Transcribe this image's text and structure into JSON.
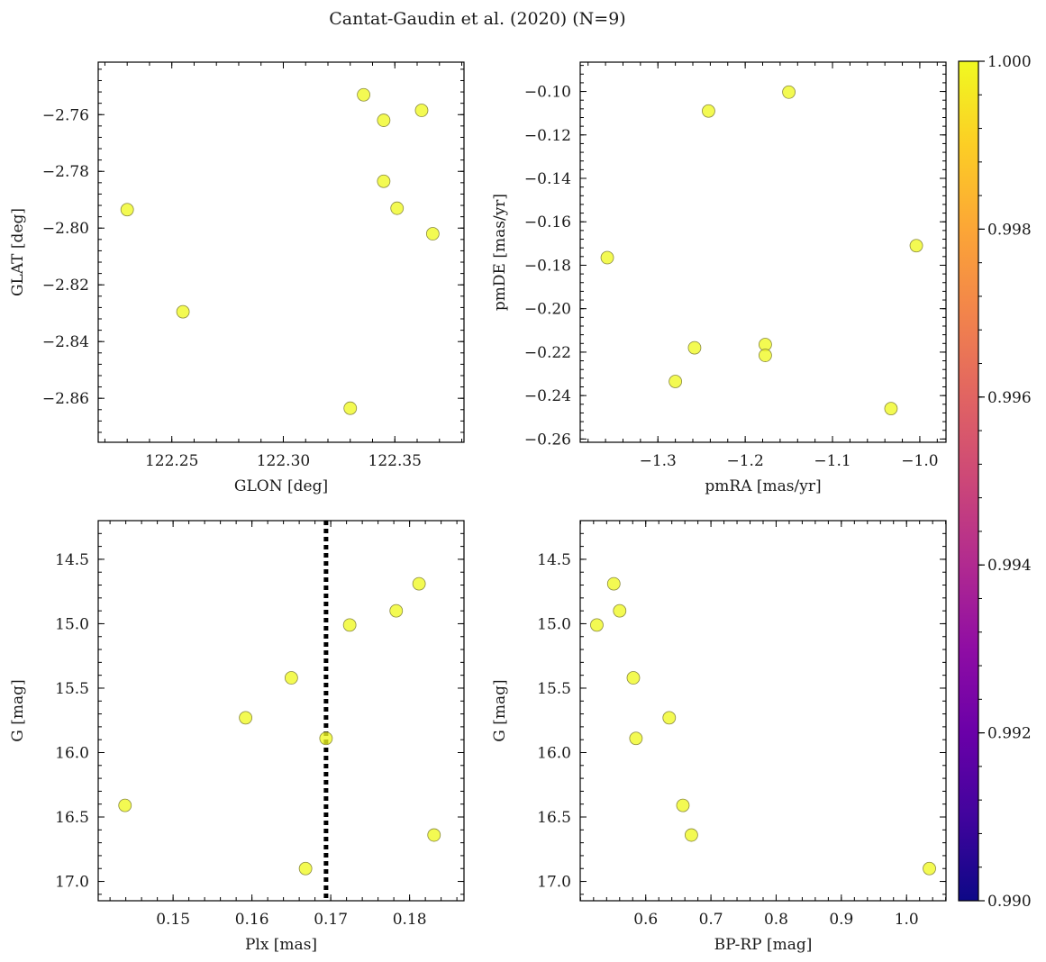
{
  "figure": {
    "title": "Cantat-Gaudin et al. (2020) (N=9)"
  },
  "colorbar": {
    "vmin": 0.99,
    "vmax": 1.0,
    "colormap": "plasma",
    "ticks": [
      0.99,
      0.992,
      0.994,
      0.996,
      0.998,
      1.0
    ],
    "tick_labels": [
      "0.990",
      "0.992",
      "0.994",
      "0.996",
      "0.998",
      "1.000"
    ]
  },
  "chart_data": [
    {
      "type": "scatter",
      "xlabel": "GLON [deg]",
      "ylabel": "GLAT [deg]",
      "xlim": [
        122.217,
        122.381
      ],
      "ylim": [
        -2.8755,
        -2.7415
      ],
      "inverted_y": false,
      "xticks": [
        122.25,
        122.3,
        122.35
      ],
      "xtick_labels": [
        "122.25",
        "122.30",
        "122.35"
      ],
      "xminor": 0.01,
      "yticks": [
        -2.76,
        -2.78,
        -2.8,
        -2.82,
        -2.84,
        -2.86
      ],
      "ytick_labels": [
        "−2.76",
        "−2.78",
        "−2.80",
        "−2.82",
        "−2.84",
        "−2.86"
      ],
      "yminor": 0.004,
      "marker_color": "#f0f921",
      "points": [
        {
          "x": 122.23,
          "y": -2.7935
        },
        {
          "x": 122.255,
          "y": -2.8295
        },
        {
          "x": 122.336,
          "y": -2.753
        },
        {
          "x": 122.345,
          "y": -2.762
        },
        {
          "x": 122.345,
          "y": -2.7835
        },
        {
          "x": 122.351,
          "y": -2.793
        },
        {
          "x": 122.362,
          "y": -2.7585
        },
        {
          "x": 122.367,
          "y": -2.802
        },
        {
          "x": 122.33,
          "y": -2.8635
        }
      ]
    },
    {
      "type": "scatter",
      "xlabel": "pmRA [mas/yr]",
      "ylabel": "pmDE [mas/yr]",
      "xlim": [
        -1.389,
        -0.97
      ],
      "ylim": [
        -0.2615,
        -0.0865
      ],
      "inverted_y": false,
      "xticks": [
        -1.3,
        -1.2,
        -1.1,
        -1.0
      ],
      "xtick_labels": [
        "−1.3",
        "−1.2",
        "−1.1",
        "−1.0"
      ],
      "xminor": 0.02,
      "yticks": [
        -0.1,
        -0.12,
        -0.14,
        -0.16,
        -0.18,
        -0.2,
        -0.22,
        -0.24,
        -0.26
      ],
      "ytick_labels": [
        "−0.10",
        "−0.12",
        "−0.14",
        "−0.16",
        "−0.18",
        "−0.20",
        "−0.22",
        "−0.24",
        "−0.26"
      ],
      "yminor": 0.004,
      "marker_color": "#f0f921",
      "points": [
        {
          "x": -1.358,
          "y": -0.1765
        },
        {
          "x": -1.28,
          "y": -0.2335
        },
        {
          "x": -1.258,
          "y": -0.218
        },
        {
          "x": -1.242,
          "y": -0.109
        },
        {
          "x": -1.177,
          "y": -0.2165
        },
        {
          "x": -1.177,
          "y": -0.2215
        },
        {
          "x": -1.15,
          "y": -0.1003
        },
        {
          "x": -1.033,
          "y": -0.246
        },
        {
          "x": -1.004,
          "y": -0.171
        }
      ]
    },
    {
      "type": "scatter",
      "xlabel": "Plx [mas]",
      "ylabel": "G [mag]",
      "xlim": [
        0.1405,
        0.1869
      ],
      "ylim": [
        17.15,
        14.2
      ],
      "inverted_y": true,
      "xticks": [
        0.15,
        0.16,
        0.17,
        0.18
      ],
      "xtick_labels": [
        "0.15",
        "0.16",
        "0.17",
        "0.18"
      ],
      "xminor": 0.002,
      "yticks": [
        14.5,
        15.0,
        15.5,
        16.0,
        16.5,
        17.0
      ],
      "ytick_labels": [
        "14.5",
        "15.0",
        "15.5",
        "16.0",
        "16.5",
        "17.0"
      ],
      "yminor": 0.1,
      "vline": 0.1694,
      "marker_color": "#f0f921",
      "points": [
        {
          "x": 0.1439,
          "y": 16.41
        },
        {
          "x": 0.1592,
          "y": 15.73
        },
        {
          "x": 0.165,
          "y": 15.42
        },
        {
          "x": 0.1668,
          "y": 16.9
        },
        {
          "x": 0.1694,
          "y": 15.89
        },
        {
          "x": 0.1724,
          "y": 15.01
        },
        {
          "x": 0.1783,
          "y": 14.9
        },
        {
          "x": 0.1812,
          "y": 14.69
        },
        {
          "x": 0.1831,
          "y": 16.64
        }
      ]
    },
    {
      "type": "scatter",
      "xlabel": "BP-RP [mag]",
      "ylabel": "G [mag]",
      "xlim": [
        0.4995,
        1.0605
      ],
      "ylim": [
        17.15,
        14.2
      ],
      "inverted_y": true,
      "xticks": [
        0.6,
        0.7,
        0.8,
        0.9,
        1.0
      ],
      "xtick_labels": [
        "0.6",
        "0.7",
        "0.8",
        "0.9",
        "1.0"
      ],
      "xminor": 0.02,
      "yticks": [
        14.5,
        15.0,
        15.5,
        16.0,
        16.5,
        17.0
      ],
      "ytick_labels": [
        "14.5",
        "15.0",
        "15.5",
        "16.0",
        "16.5",
        "17.0"
      ],
      "yminor": 0.1,
      "marker_color": "#f0f921",
      "points": [
        {
          "x": 0.525,
          "y": 15.01
        },
        {
          "x": 0.551,
          "y": 14.69
        },
        {
          "x": 0.56,
          "y": 14.9
        },
        {
          "x": 0.581,
          "y": 15.42
        },
        {
          "x": 0.585,
          "y": 15.89
        },
        {
          "x": 0.636,
          "y": 15.73
        },
        {
          "x": 0.657,
          "y": 16.41
        },
        {
          "x": 0.67,
          "y": 16.64
        },
        {
          "x": 1.035,
          "y": 16.9
        }
      ]
    }
  ]
}
